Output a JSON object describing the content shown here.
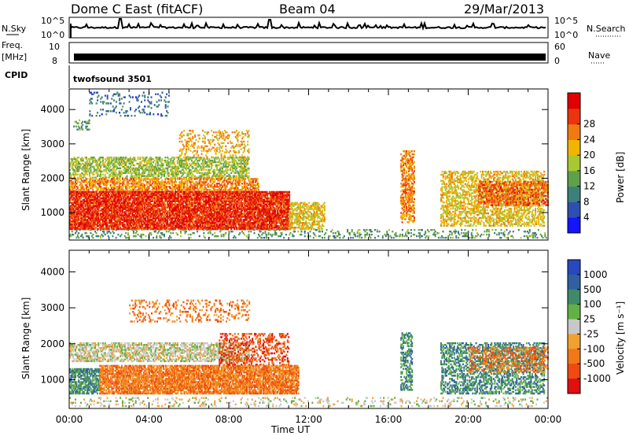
{
  "header": {
    "station": "Dome C East (fitACF)",
    "beam": "Beam 04",
    "date": "29/Mar/2013"
  },
  "strip_panels": {
    "nsky": {
      "left_label": "N.Sky",
      "ticks_left": [
        "10^5",
        "10^0"
      ],
      "ticks_right": [
        "10^5",
        "10^0"
      ],
      "right_label": "N.Search"
    },
    "freq": {
      "left_label_1": "Freq.",
      "left_label_2": "[MHz]",
      "ticks_left": [
        "10",
        "8"
      ],
      "ticks_right": [
        "60",
        "0"
      ],
      "right_label": "Nave"
    },
    "cpid": {
      "label": "CPID",
      "value": "twofsound 3501"
    }
  },
  "chart_data": [
    {
      "type": "heatmap",
      "title": "",
      "quantity": "Power",
      "xlabel": "Time UT",
      "ylabel": "Slant Range [km]",
      "xlim_hours": [
        0,
        24
      ],
      "ylim_km": [
        200,
        4600
      ],
      "x_ticks": [
        "00:00",
        "04:00",
        "08:00",
        "12:00",
        "16:00",
        "20:00",
        "00:00"
      ],
      "y_ticks": [
        "1000",
        "2000",
        "3000",
        "4000"
      ],
      "colorbar": {
        "label": "Power [dB]",
        "ticks": [
          "4",
          "8",
          "12",
          "16",
          "20",
          "24",
          "28"
        ],
        "range": [
          0,
          30
        ],
        "colors": [
          "#1414ff",
          "#2f4fb0",
          "#3d7f7a",
          "#5fa04a",
          "#a8c832",
          "#f2b400",
          "#f07a10",
          "#ea3410",
          "#e00000"
        ]
      },
      "echo_regions": [
        {
          "t": [
            0.2,
            1.0
          ],
          "r": [
            3400,
            3700
          ],
          "level": 10,
          "density": 0.35
        },
        {
          "t": [
            1.0,
            5.0
          ],
          "r": [
            3800,
            4500
          ],
          "level": 6,
          "density": 0.12
        },
        {
          "t": [
            0.0,
            9.0
          ],
          "r": [
            2000,
            2600
          ],
          "level": 14,
          "density": 0.55
        },
        {
          "t": [
            0.0,
            9.5
          ],
          "r": [
            1600,
            2000
          ],
          "level": 22,
          "density": 0.6
        },
        {
          "t": [
            0.0,
            11.0
          ],
          "r": [
            500,
            1600
          ],
          "level": 27,
          "density": 0.85
        },
        {
          "t": [
            5.5,
            9.0
          ],
          "r": [
            2600,
            3400
          ],
          "level": 20,
          "density": 0.25
        },
        {
          "t": [
            11.0,
            12.8
          ],
          "r": [
            500,
            1300
          ],
          "level": 18,
          "density": 0.6
        },
        {
          "t": [
            16.6,
            17.3
          ],
          "r": [
            700,
            2800
          ],
          "level": 22,
          "density": 0.55
        },
        {
          "t": [
            18.6,
            23.8
          ],
          "r": [
            600,
            2200
          ],
          "level": 18,
          "density": 0.5
        },
        {
          "t": [
            20.5,
            24.0
          ],
          "r": [
            1200,
            1900
          ],
          "level": 24,
          "density": 0.5
        },
        {
          "t": [
            0.0,
            24.0
          ],
          "r": [
            250,
            500
          ],
          "level": 10,
          "density": 0.2
        }
      ]
    },
    {
      "type": "heatmap",
      "title": "",
      "quantity": "Velocity",
      "xlabel": "Time UT",
      "ylabel": "Slant Range [km]",
      "xlim_hours": [
        0,
        24
      ],
      "ylim_km": [
        200,
        4600
      ],
      "x_ticks": [
        "00:00",
        "04:00",
        "08:00",
        "12:00",
        "16:00",
        "20:00",
        "00:00"
      ],
      "y_ticks": [
        "1000",
        "2000",
        "3000",
        "4000"
      ],
      "colorbar": {
        "label": "Velocity [m s⁻¹]",
        "ticks": [
          "1000",
          "500",
          "100",
          "25",
          "-25",
          "-100",
          "-500",
          "-1000"
        ],
        "colors": [
          "#2848c0",
          "#3060a0",
          "#3e8a6a",
          "#63b045",
          "#c8c8c8",
          "#f2a030",
          "#f07818",
          "#ee4a12",
          "#e01010"
        ]
      },
      "echo_regions": [
        {
          "t": [
            0.0,
            9.0
          ],
          "r": [
            1500,
            2000
          ],
          "level": 4,
          "density": 0.55
        },
        {
          "t": [
            0.0,
            1.5
          ],
          "r": [
            600,
            1300
          ],
          "level": 2,
          "density": 0.7
        },
        {
          "t": [
            1.5,
            11.5
          ],
          "r": [
            600,
            1400
          ],
          "level": 6,
          "density": 0.8
        },
        {
          "t": [
            3.0,
            9.0
          ],
          "r": [
            2600,
            3200
          ],
          "level": 6,
          "density": 0.2
        },
        {
          "t": [
            7.5,
            11.0
          ],
          "r": [
            1400,
            2300
          ],
          "level": 7,
          "density": 0.35
        },
        {
          "t": [
            16.6,
            17.2
          ],
          "r": [
            700,
            2300
          ],
          "level": 2,
          "density": 0.5
        },
        {
          "t": [
            18.6,
            23.8
          ],
          "r": [
            600,
            2000
          ],
          "level": 2,
          "density": 0.45
        },
        {
          "t": [
            20.0,
            24.0
          ],
          "r": [
            1200,
            1900
          ],
          "level": 6,
          "density": 0.35
        },
        {
          "t": [
            0.0,
            24.0
          ],
          "r": [
            250,
            500
          ],
          "level": 4,
          "density": 0.15
        }
      ]
    }
  ]
}
